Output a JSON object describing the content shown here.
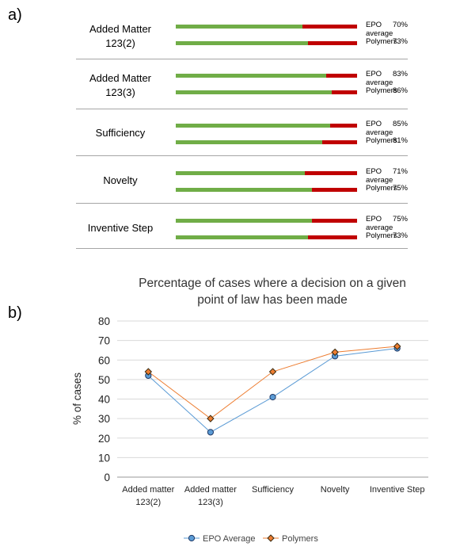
{
  "panel_a": {
    "label": "a)",
    "groups": [
      {
        "label_lines": [
          "Added Matter",
          "123(2)"
        ],
        "rows": [
          {
            "name": "EPO average",
            "value": "70%",
            "fraction": 0.7
          },
          {
            "name": "Polymers",
            "value": "73%",
            "fraction": 0.73
          }
        ]
      },
      {
        "label_lines": [
          "Added Matter",
          "123(3)"
        ],
        "rows": [
          {
            "name": "EPO average",
            "value": "83%",
            "fraction": 0.83
          },
          {
            "name": "Polymers",
            "value": "86%",
            "fraction": 0.86
          }
        ]
      },
      {
        "label_lines": [
          "Sufficiency"
        ],
        "rows": [
          {
            "name": "EPO average",
            "value": "85%",
            "fraction": 0.85
          },
          {
            "name": "Polymers",
            "value": "81%",
            "fraction": 0.81
          }
        ]
      },
      {
        "label_lines": [
          "Novelty"
        ],
        "rows": [
          {
            "name": "EPO average",
            "value": "71%",
            "fraction": 0.71
          },
          {
            "name": "Polymers",
            "value": "75%",
            "fraction": 0.75
          }
        ]
      },
      {
        "label_lines": [
          "Inventive Step"
        ],
        "rows": [
          {
            "name": "EPO average",
            "value": "75%",
            "fraction": 0.75
          },
          {
            "name": "Polymers",
            "value": "73%",
            "fraction": 0.73
          }
        ]
      }
    ],
    "colors": {
      "filled": "#70ad47",
      "remainder": "#c00000"
    }
  },
  "panel_b": {
    "label": "b)"
  },
  "chart_data": {
    "type": "line",
    "title_lines": [
      "Percentage of cases where a decision on a given",
      "point of law has been made"
    ],
    "ylabel": "% of cases",
    "xlabel": "",
    "ylim": [
      0,
      80
    ],
    "yticks": [
      "0",
      "10",
      "20",
      "30",
      "40",
      "50",
      "60",
      "70",
      "80"
    ],
    "categories": [
      [
        "Added matter",
        "123(2)"
      ],
      [
        "Added matter",
        "123(3)"
      ],
      [
        "Sufficiency"
      ],
      [
        "Novelty"
      ],
      [
        "Inventive Step"
      ]
    ],
    "series": [
      {
        "name": "EPO Average",
        "values": [
          52,
          23,
          41,
          62,
          66
        ],
        "color": "#5b9bd5",
        "marker": "circle"
      },
      {
        "name": "Polymers",
        "values": [
          54,
          30,
          54,
          64,
          67
        ],
        "color": "#ed7d31",
        "marker": "diamond"
      }
    ],
    "grid": true,
    "legend_position": "bottom"
  }
}
